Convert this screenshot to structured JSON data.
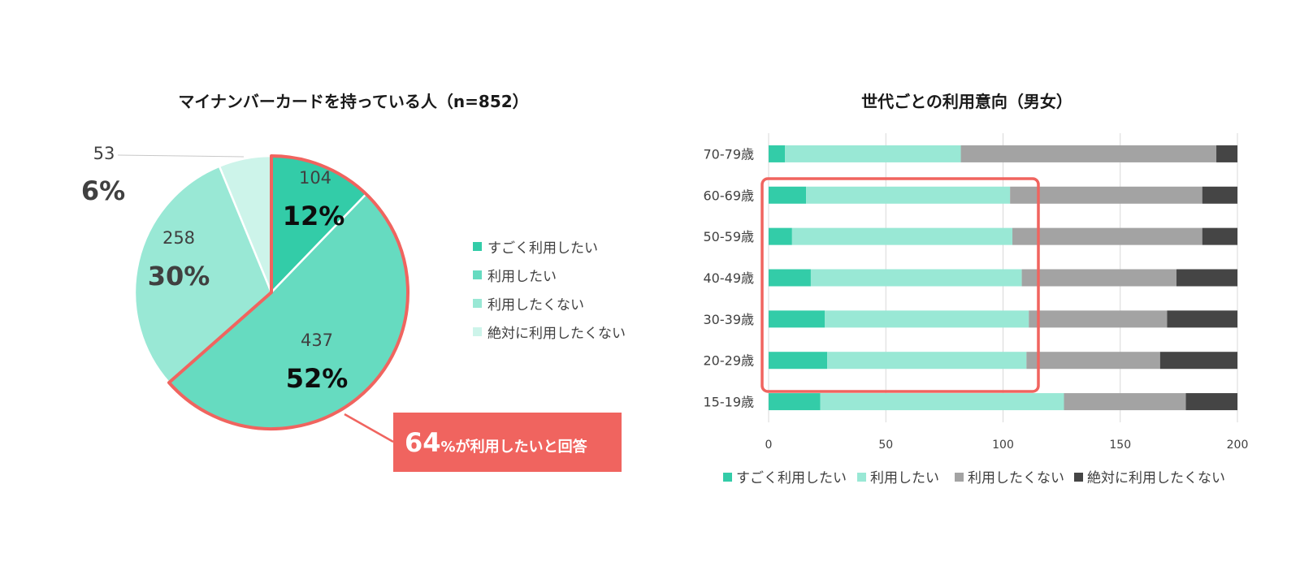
{
  "colors": {
    "very_want": "#33cca8",
    "want_pie": "#66dbc0",
    "want_bar": "#99e8d5",
    "not_want_pie": "#99e8d5",
    "never_pie": "#cdf4ea",
    "not_want_bar": "#a3a3a3",
    "never_bar": "#454545",
    "highlight": "#f0645f"
  },
  "chart_data": [
    {
      "type": "pie",
      "title": "マイナンバーカードを持っている人（n=852）",
      "slices": [
        {
          "name": "すごく利用したい",
          "value": 104,
          "percent": "12%"
        },
        {
          "name": "利用したい",
          "value": 437,
          "percent": "52%"
        },
        {
          "name": "利用したくない",
          "value": 258,
          "percent": "30%"
        },
        {
          "name": "絶対に利用したくない",
          "value": 53,
          "percent": "6%"
        }
      ],
      "legend": [
        "すごく利用したい",
        "利用したい",
        "利用したくない",
        "絶対に利用したくない"
      ],
      "legend_position": "right",
      "annotation": {
        "number": "64",
        "text": "%が利用したいと回答"
      }
    },
    {
      "type": "bar",
      "orientation": "horizontal",
      "stacked": true,
      "title": "世代ごとの利用意向（男女）",
      "categories": [
        "70-79歳",
        "60-69歳",
        "50-59歳",
        "40-49歳",
        "30-39歳",
        "20-29歳",
        "15-19歳"
      ],
      "series": [
        {
          "name": "すごく利用したい",
          "values": [
            7,
            16,
            10,
            18,
            24,
            25,
            22
          ]
        },
        {
          "name": "利用したい",
          "values": [
            75,
            87,
            94,
            90,
            87,
            85,
            104
          ]
        },
        {
          "name": "利用したくない",
          "values": [
            109,
            82,
            81,
            66,
            59,
            57,
            52
          ]
        },
        {
          "name": "絶対に利用したくない",
          "values": [
            9,
            15,
            15,
            26,
            30,
            33,
            22
          ]
        }
      ],
      "xlim": [
        0,
        200
      ],
      "xticks": [
        0,
        50,
        100,
        150,
        200
      ],
      "grid": true,
      "legend_position": "bottom",
      "highlight_categories": [
        "60-69歳",
        "50-59歳",
        "40-49歳",
        "30-39歳",
        "20-29歳"
      ]
    }
  ]
}
